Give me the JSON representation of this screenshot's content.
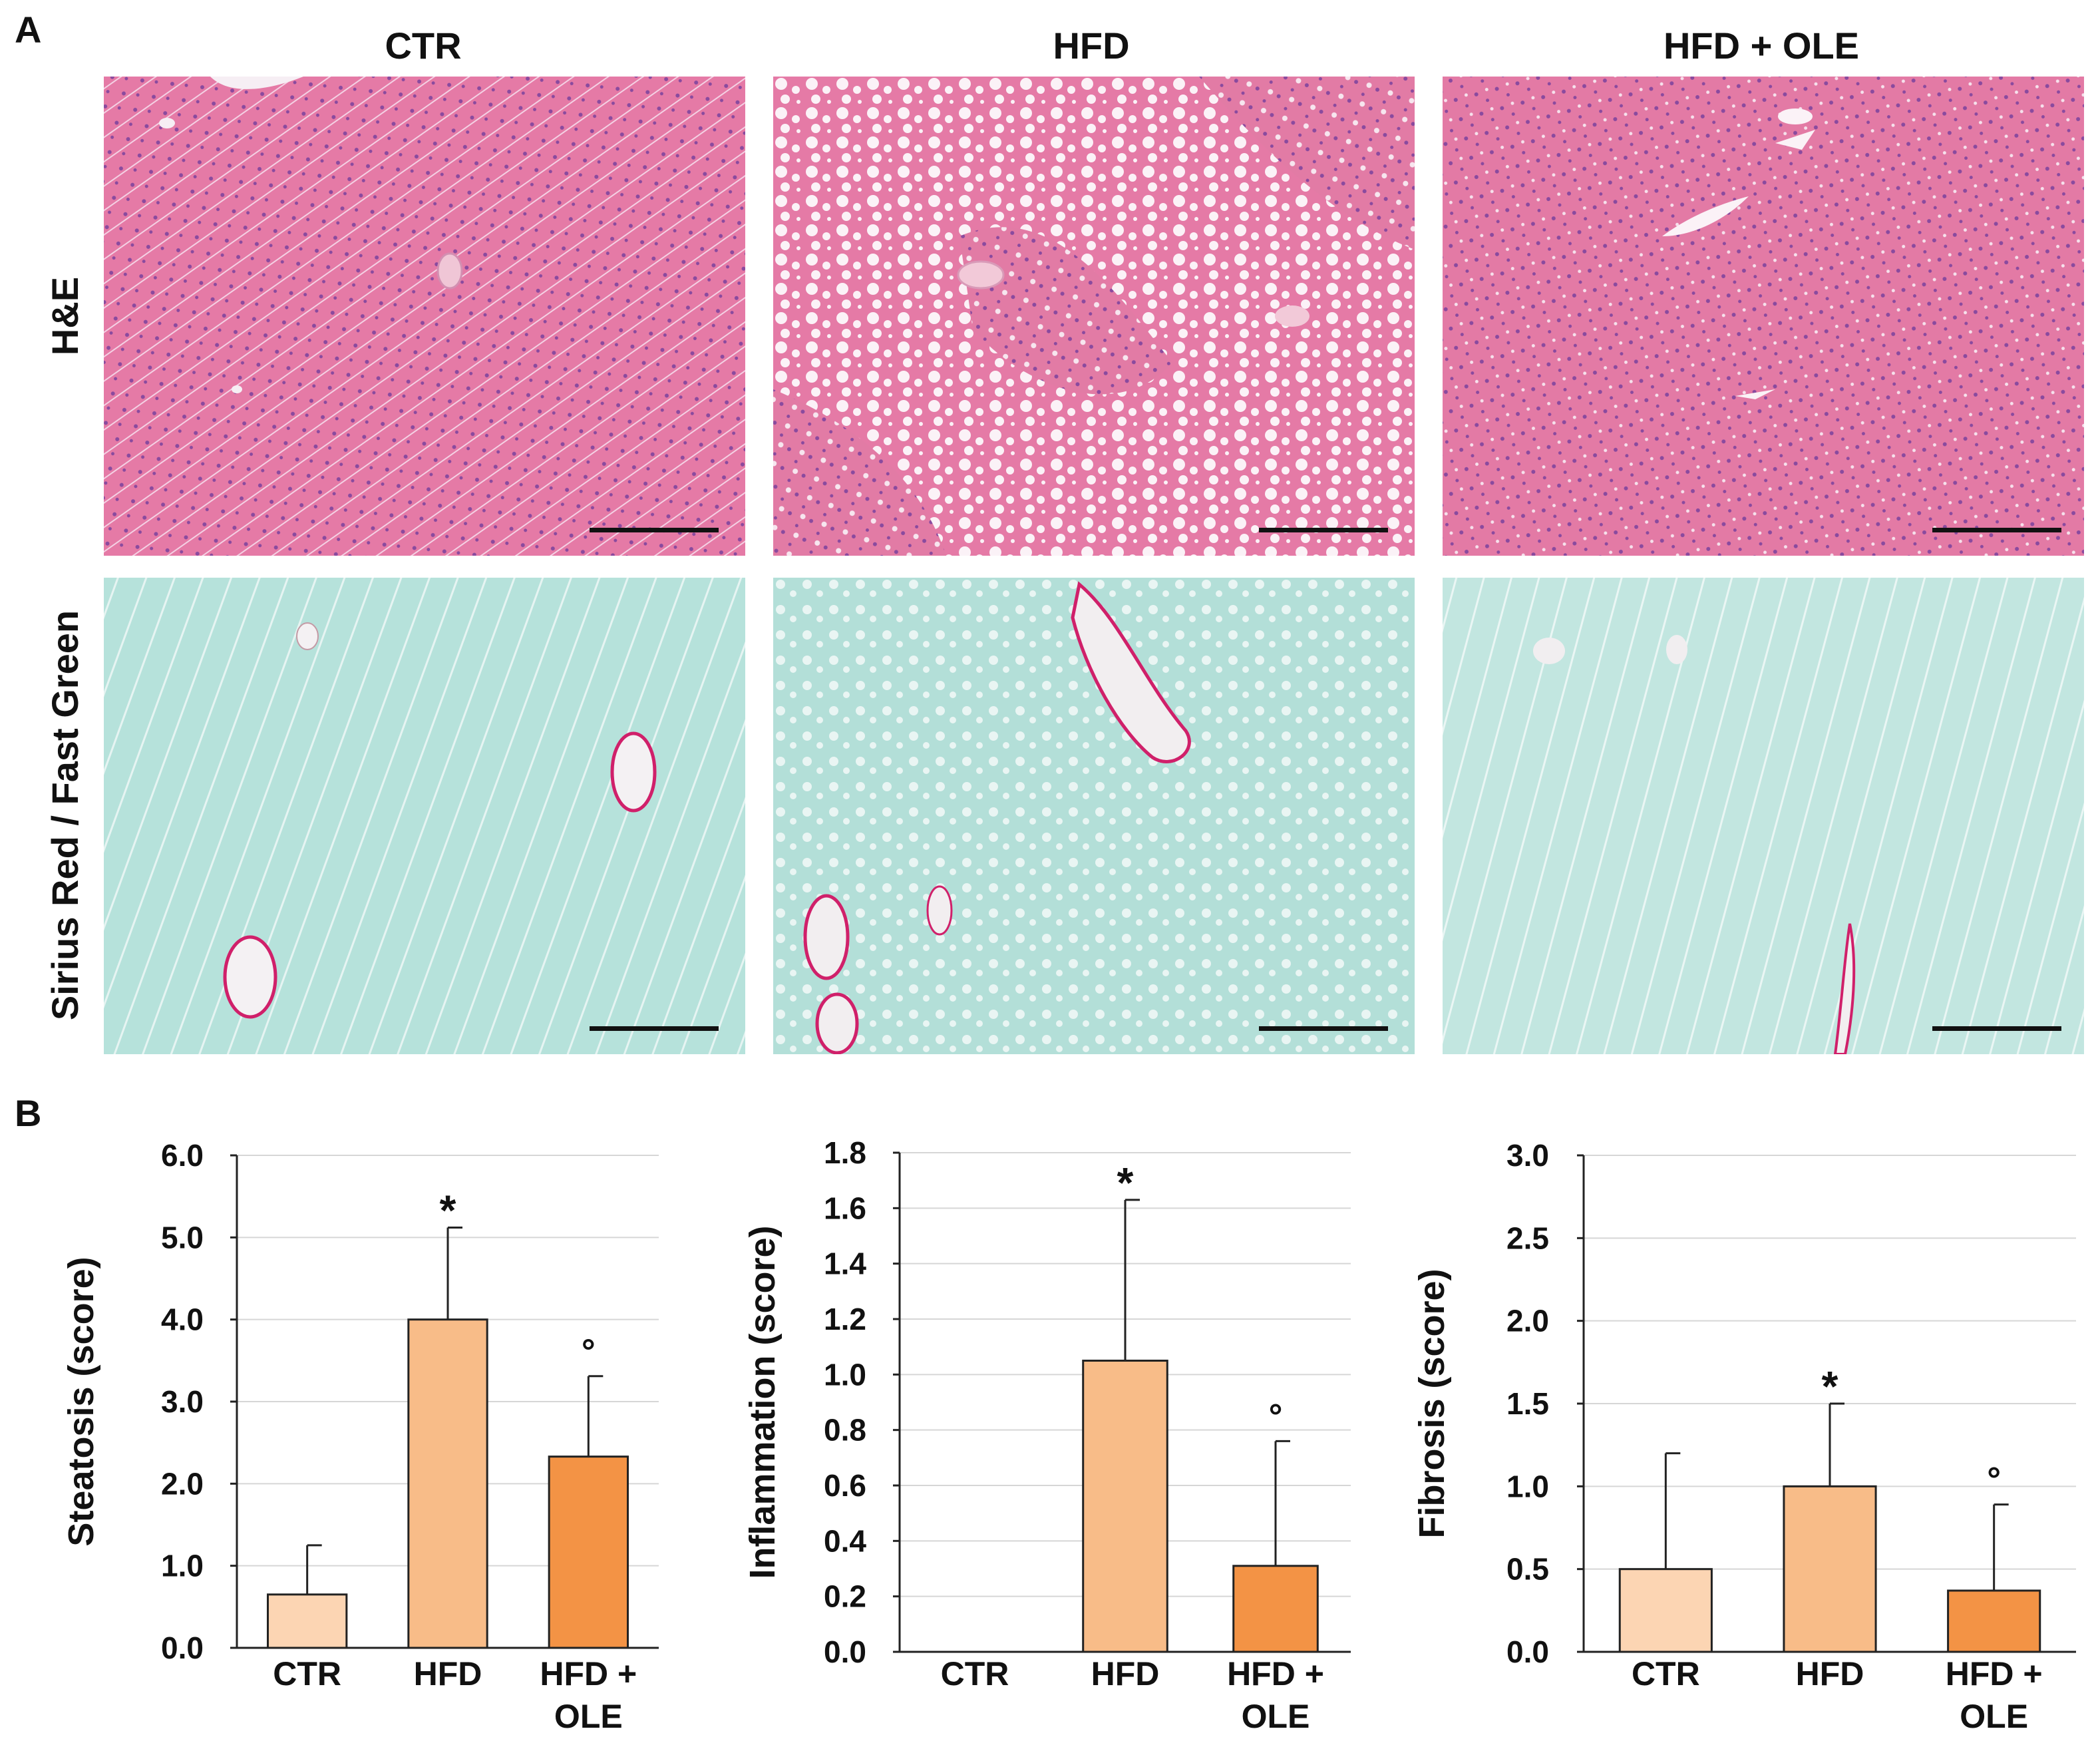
{
  "panel_a": {
    "letter": "A",
    "columns": [
      "CTR",
      "HFD",
      "HFD + OLE"
    ],
    "rows": [
      "H&E",
      "Sirius Red / Fast Green"
    ]
  },
  "panel_b": {
    "letter": "B"
  },
  "colors": {
    "he_stain": "#e780a8",
    "fastgreen_stain": "#b3e0da",
    "sirius_red": "#d0206a",
    "bar_ctr": "#fcd5b3",
    "bar_hfd": "#f8bc88",
    "bar_ole": "#f39345"
  },
  "chart_data": [
    {
      "type": "bar",
      "categories": [
        "CTR",
        "HFD",
        "HFD +\nOLE"
      ],
      "values": [
        0.65,
        4.0,
        2.33
      ],
      "errors": [
        0.6,
        1.12,
        0.98
      ],
      "significance": [
        "",
        "*",
        "°"
      ],
      "ylabel": "Steatosis (score)",
      "ylim": [
        0,
        6
      ],
      "yticks": [
        "0.0",
        "1.0",
        "2.0",
        "3.0",
        "4.0",
        "5.0",
        "6.0"
      ],
      "grid": true
    },
    {
      "type": "bar",
      "categories": [
        "CTR",
        "HFD",
        "HFD +\nOLE"
      ],
      "values": [
        0.0,
        1.05,
        0.31
      ],
      "errors": [
        0.0,
        0.58,
        0.45
      ],
      "significance": [
        "",
        "*",
        "°"
      ],
      "ylabel": "Inflammation (score)",
      "ylim": [
        0,
        1.8
      ],
      "yticks": [
        "0.0",
        "0.2",
        "0.4",
        "0.6",
        "0.8",
        "1.0",
        "1.2",
        "1.4",
        "1.6",
        "1.8"
      ],
      "grid": true
    },
    {
      "type": "bar",
      "categories": [
        "CTR",
        "HFD",
        "HFD +\nOLE"
      ],
      "values": [
        0.5,
        1.0,
        0.37
      ],
      "errors": [
        0.7,
        0.5,
        0.52
      ],
      "significance": [
        "",
        "*",
        "°"
      ],
      "ylabel": "Fibrosis (score)",
      "ylim": [
        0,
        3.0
      ],
      "yticks": [
        "0.0",
        "0.5",
        "1.0",
        "1.5",
        "2.0",
        "2.5",
        "3.0"
      ],
      "grid": true
    }
  ]
}
